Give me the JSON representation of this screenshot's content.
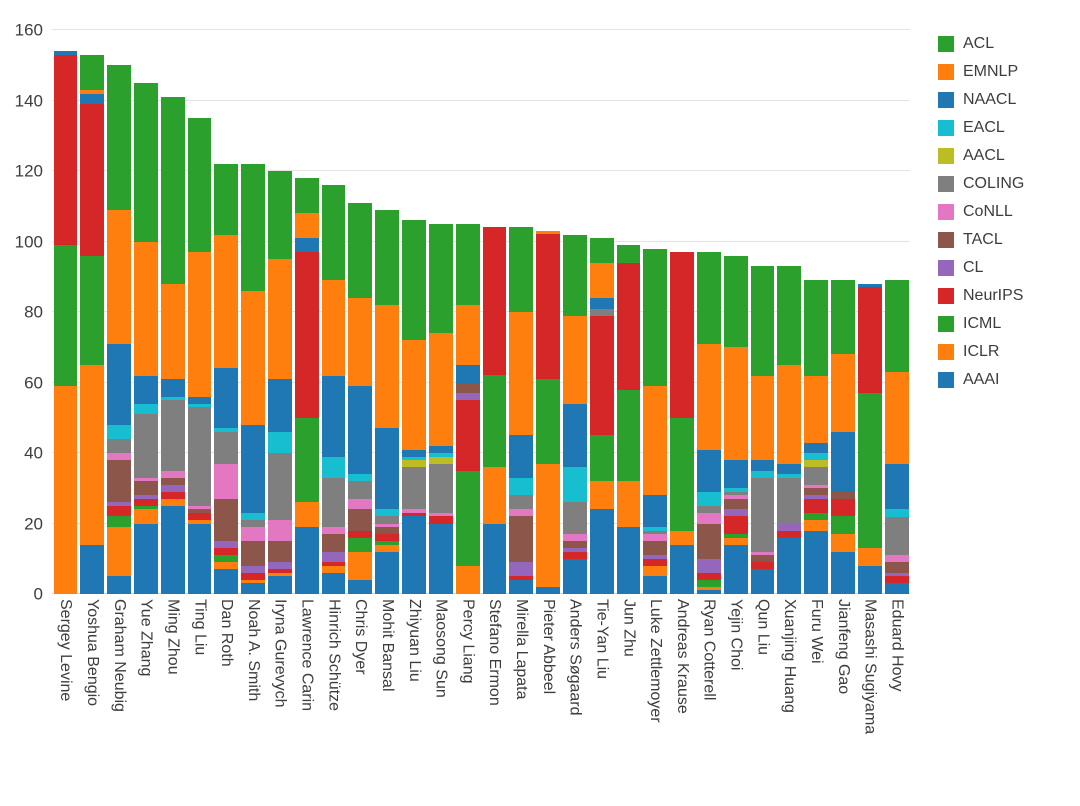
{
  "chart_data": {
    "type": "bar",
    "stacked": true,
    "title": "",
    "xlabel": "",
    "ylabel": "",
    "ylim": [
      0,
      160
    ],
    "yticks": [
      0,
      20,
      40,
      60,
      80,
      100,
      120,
      140,
      160
    ],
    "grid": true,
    "legend_position": "right",
    "categories": [
      "Sergey Levine",
      "Yoshua Bengio",
      "Graham Neubig",
      "Yue Zhang",
      "Ming Zhou",
      "Ting Liu",
      "Dan Roth",
      "Noah A. Smith",
      "Iryna Gurevych",
      "Lawrence Carin",
      "Hinrich Schütze",
      "Chris Dyer",
      "Mohit Bansal",
      "Zhiyuan Liu",
      "Maosong Sun",
      "Percy Liang",
      "Stefano Ermon",
      "Mirella Lapata",
      "Pieter Abbeel",
      "Anders Søgaard",
      "Tie-Yan Liu",
      "Jun Zhu",
      "Luke Zettlemoyer",
      "Andreas Krause",
      "Ryan Cotterell",
      "Yejin Choi",
      "Qun Liu",
      "Xuanjing Huang",
      "Furu Wei",
      "Jianfeng Gao",
      "Masashi Sugiyama",
      "Eduard Hovy"
    ],
    "stack_order_note": "series listed bottom-to-top",
    "series": [
      {
        "name": "AAAI",
        "color": "#1f77b4",
        "values": [
          0,
          14,
          5,
          20,
          25,
          20,
          7,
          3,
          5,
          19,
          6,
          4,
          12,
          22,
          20,
          0,
          20,
          4,
          2,
          10,
          24,
          19,
          5,
          14,
          1,
          14,
          7,
          16,
          18,
          12,
          8,
          3
        ]
      },
      {
        "name": "ICLR",
        "color": "#ff7f0e",
        "values": [
          59,
          51,
          14,
          4,
          2,
          1,
          2,
          1,
          1,
          7,
          2,
          8,
          2,
          0,
          0,
          8,
          16,
          0,
          35,
          0,
          8,
          13,
          3,
          4,
          1,
          2,
          0,
          0,
          3,
          5,
          5,
          0
        ]
      },
      {
        "name": "ICML",
        "color": "#2ca02c",
        "values": [
          40,
          31,
          3,
          1,
          0,
          0,
          2,
          0,
          0,
          24,
          0,
          4,
          1,
          0,
          0,
          27,
          26,
          0,
          24,
          0,
          13,
          26,
          0,
          32,
          2,
          1,
          0,
          0,
          2,
          5,
          44,
          0
        ]
      },
      {
        "name": "NeurIPS",
        "color": "#d62728",
        "values": [
          54,
          43,
          3,
          2,
          2,
          2,
          2,
          2,
          1,
          47,
          1,
          2,
          2,
          1,
          2,
          20,
          42,
          1,
          41,
          2,
          34,
          36,
          2,
          47,
          2,
          5,
          2,
          2,
          4,
          5,
          30,
          2
        ]
      },
      {
        "name": "CL",
        "color": "#9467bd",
        "values": [
          0,
          0,
          1,
          1,
          2,
          0,
          2,
          2,
          2,
          0,
          3,
          0,
          0,
          0,
          0,
          2,
          0,
          4,
          0,
          1,
          0,
          0,
          1,
          0,
          4,
          2,
          0,
          2,
          1,
          0,
          0,
          1
        ]
      },
      {
        "name": "TACL",
        "color": "#8c564b",
        "values": [
          0,
          0,
          12,
          4,
          2,
          1,
          12,
          7,
          6,
          0,
          5,
          6,
          2,
          0,
          0,
          3,
          0,
          13,
          0,
          2,
          0,
          0,
          4,
          0,
          10,
          3,
          2,
          0,
          2,
          2,
          0,
          3
        ]
      },
      {
        "name": "CoNLL",
        "color": "#e377c2",
        "values": [
          0,
          0,
          2,
          1,
          2,
          1,
          10,
          4,
          6,
          0,
          2,
          3,
          1,
          1,
          1,
          0,
          0,
          2,
          0,
          2,
          0,
          0,
          2,
          0,
          3,
          1,
          1,
          0,
          1,
          0,
          0,
          2
        ]
      },
      {
        "name": "COLING",
        "color": "#7f7f7f",
        "values": [
          0,
          0,
          4,
          18,
          20,
          28,
          9,
          2,
          19,
          0,
          14,
          5,
          2,
          12,
          14,
          0,
          0,
          4,
          0,
          9,
          2,
          0,
          1,
          0,
          2,
          1,
          21,
          13,
          5,
          0,
          0,
          11
        ]
      },
      {
        "name": "AACL",
        "color": "#bcbd22",
        "values": [
          0,
          0,
          0,
          0,
          0,
          0,
          0,
          0,
          0,
          0,
          0,
          0,
          0,
          2,
          2,
          0,
          0,
          0,
          0,
          0,
          0,
          0,
          0,
          0,
          0,
          0,
          0,
          0,
          2,
          0,
          0,
          0
        ]
      },
      {
        "name": "EACL",
        "color": "#17becf",
        "values": [
          0,
          0,
          4,
          3,
          1,
          1,
          1,
          2,
          6,
          0,
          6,
          2,
          2,
          1,
          1,
          0,
          0,
          5,
          0,
          10,
          0,
          0,
          1,
          0,
          4,
          1,
          2,
          1,
          2,
          0,
          0,
          2
        ]
      },
      {
        "name": "NAACL",
        "color": "#1f77b4",
        "values": [
          1,
          3,
          23,
          8,
          5,
          2,
          17,
          25,
          15,
          4,
          23,
          25,
          23,
          2,
          2,
          5,
          0,
          12,
          0,
          18,
          3,
          0,
          9,
          0,
          12,
          8,
          3,
          3,
          3,
          17,
          1,
          13
        ]
      },
      {
        "name": "EMNLP",
        "color": "#ff7f0e",
        "values": [
          0,
          1,
          38,
          38,
          27,
          41,
          38,
          38,
          34,
          7,
          27,
          25,
          35,
          31,
          32,
          17,
          0,
          35,
          1,
          25,
          10,
          0,
          31,
          0,
          30,
          32,
          24,
          28,
          19,
          22,
          0,
          26
        ]
      },
      {
        "name": "ACL",
        "color": "#2ca02c",
        "values": [
          0,
          10,
          41,
          45,
          53,
          38,
          20,
          36,
          25,
          10,
          27,
          27,
          27,
          34,
          31,
          23,
          0,
          24,
          0,
          23,
          7,
          5,
          39,
          0,
          26,
          26,
          31,
          28,
          27,
          21,
          0,
          26
        ]
      }
    ],
    "legend": [
      {
        "label": "ACL",
        "color": "#2ca02c"
      },
      {
        "label": "EMNLP",
        "color": "#ff7f0e"
      },
      {
        "label": "NAACL",
        "color": "#1f77b4"
      },
      {
        "label": "EACL",
        "color": "#17becf"
      },
      {
        "label": "AACL",
        "color": "#bcbd22"
      },
      {
        "label": "COLING",
        "color": "#7f7f7f"
      },
      {
        "label": "CoNLL",
        "color": "#e377c2"
      },
      {
        "label": "TACL",
        "color": "#8c564b"
      },
      {
        "label": "CL",
        "color": "#9467bd"
      },
      {
        "label": "NeurIPS",
        "color": "#d62728"
      },
      {
        "label": "ICML",
        "color": "#2ca02c"
      },
      {
        "label": "ICLR",
        "color": "#ff7f0e"
      },
      {
        "label": "AAAI",
        "color": "#1f77b4"
      }
    ]
  }
}
